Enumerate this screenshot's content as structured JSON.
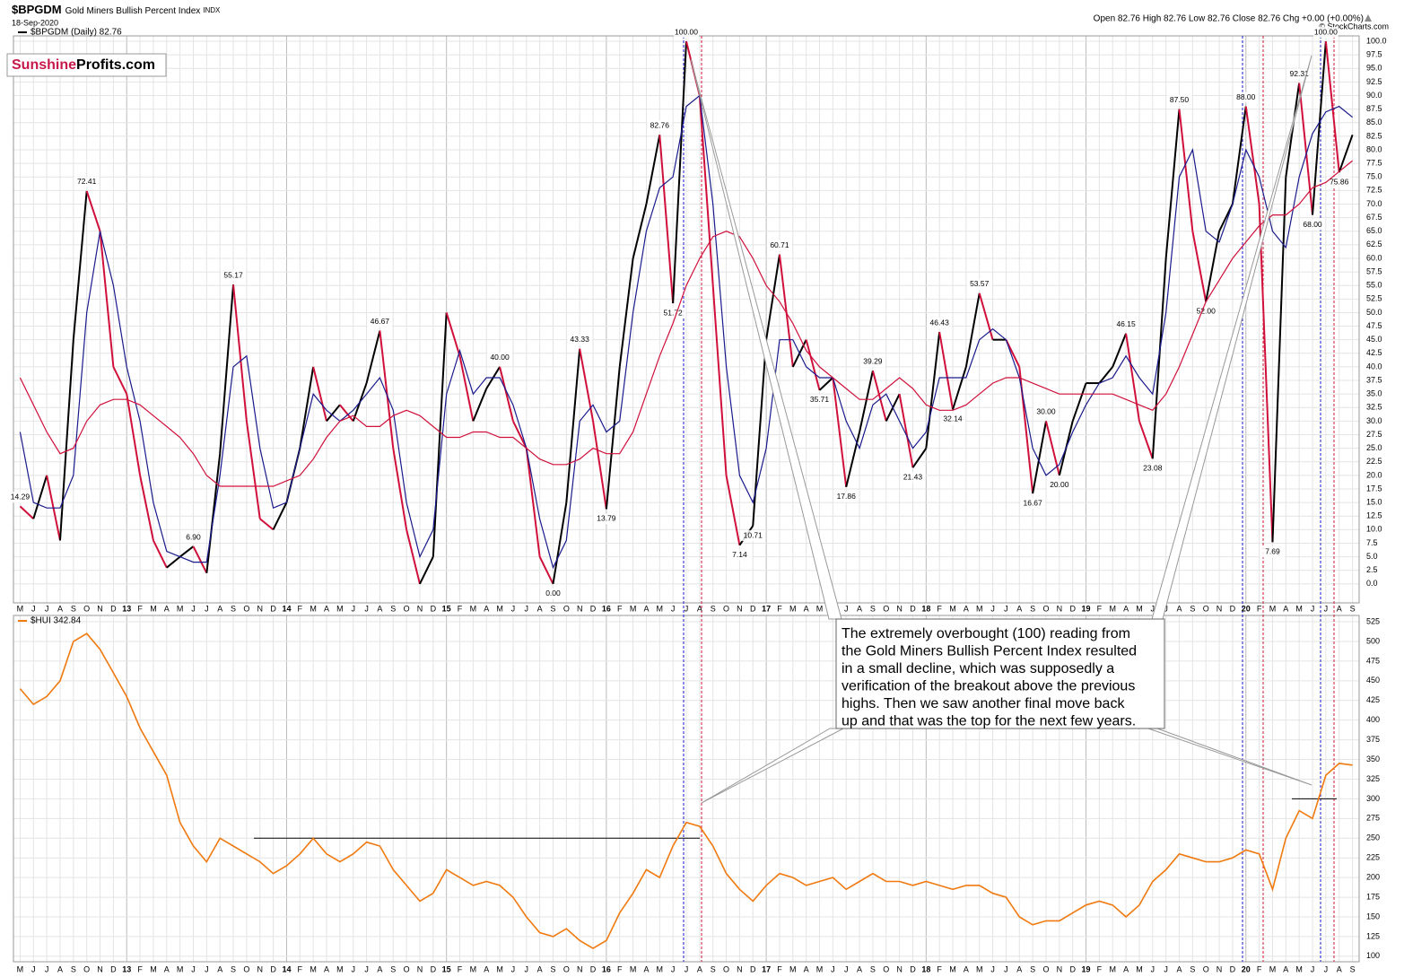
{
  "header": {
    "title": "$BPGDM",
    "subtitle": "Gold Miners Bullish Percent Index",
    "exchange": "INDX",
    "date": "18-Sep-2020",
    "quote": "Open 82.76 High 82.76 Low 82.76 Close 82.76 Chg +0.00 (+0.00%)",
    "credit": "© StockCharts.com",
    "logo_a": "Sunshine",
    "logo_b": "Profits.com"
  },
  "annotation": [
    "The extremely overbought (100) reading from",
    "the Gold Miners Bullish Percent Index resulted",
    "in a small decline, which was supposedly a",
    "verification of the breakout above the previous",
    "highs. Then we saw another final move back",
    "up and that was the top for the next few years."
  ],
  "chart_data": [
    {
      "type": "line",
      "categories": [
        "M",
        "J",
        "J",
        "A",
        "S",
        "O",
        "N",
        "D",
        "13",
        "F",
        "M",
        "A",
        "M",
        "J",
        "J",
        "A",
        "S",
        "O",
        "N",
        "D",
        "14",
        "F",
        "M",
        "A",
        "M",
        "J",
        "J",
        "A",
        "S",
        "O",
        "N",
        "D",
        "15",
        "F",
        "M",
        "A",
        "M",
        "J",
        "J",
        "A",
        "S",
        "O",
        "N",
        "D",
        "16",
        "F",
        "M",
        "A",
        "M",
        "J",
        "J",
        "A",
        "S",
        "O",
        "N",
        "D",
        "17",
        "F",
        "M",
        "A",
        "M",
        "J",
        "J",
        "A",
        "S",
        "O",
        "N",
        "D",
        "18",
        "F",
        "M",
        "A",
        "M",
        "J",
        "J",
        "A",
        "S",
        "O",
        "N",
        "D",
        "19",
        "F",
        "M",
        "A",
        "M",
        "J",
        "J",
        "A",
        "S",
        "O",
        "N",
        "D",
        "20",
        "F",
        "M",
        "A",
        "M",
        "J",
        "J",
        "A",
        "S"
      ],
      "series": [
        {
          "name": "$BPGDM (Daily) 82.76",
          "color": "#000000",
          "down_color": "#d0103a",
          "values": [
            14.29,
            12,
            20,
            8,
            45,
            72.41,
            65,
            40,
            35,
            20,
            8,
            3,
            5,
            6.9,
            2,
            24,
            55.17,
            30,
            12,
            10,
            15,
            25,
            40,
            30,
            33,
            30,
            37,
            46.67,
            25,
            10,
            0,
            5,
            50,
            42,
            30,
            36,
            40,
            30,
            25,
            5,
            0,
            15,
            43.33,
            30,
            13.79,
            40,
            60,
            70,
            82.76,
            51.72,
            100,
            90,
            55,
            20,
            7.14,
            10.71,
            45,
            60.71,
            40,
            45,
            35.71,
            38,
            17.86,
            28,
            39.29,
            30,
            35,
            21.43,
            25,
            46.43,
            32.14,
            40,
            53.57,
            45,
            45,
            40,
            16.67,
            30,
            20,
            30,
            37,
            37,
            40,
            46.15,
            30,
            23.08,
            60,
            87.5,
            65,
            52,
            65,
            70,
            88,
            70,
            7.69,
            75,
            92.31,
            68,
            100,
            75.86,
            82.76
          ],
          "value_labels": [
            "14.29",
            null,
            null,
            null,
            null,
            "72.41",
            null,
            null,
            null,
            null,
            null,
            null,
            null,
            "6.90",
            null,
            null,
            "55.17",
            null,
            null,
            null,
            null,
            null,
            null,
            null,
            null,
            null,
            null,
            "46.67",
            null,
            null,
            null,
            null,
            null,
            null,
            null,
            null,
            "40.00",
            null,
            null,
            null,
            "0.00",
            null,
            "43.33",
            null,
            "13.79",
            null,
            null,
            null,
            "82.76",
            "51.72",
            "100.00",
            null,
            null,
            null,
            "7.14",
            "10.71",
            null,
            "60.71",
            null,
            null,
            "35.71",
            null,
            "17.86",
            null,
            "39.29",
            null,
            null,
            "21.43",
            null,
            "46.43",
            "32.14",
            null,
            "53.57",
            null,
            null,
            null,
            "16.67",
            "30.00",
            "20.00",
            null,
            null,
            null,
            null,
            "46.15",
            null,
            "23.08",
            null,
            "87.50",
            null,
            "52.00",
            null,
            null,
            "88.00",
            null,
            "7.69",
            null,
            "92.31",
            "68.00",
            "100.00",
            "75.86",
            null
          ]
        },
        {
          "color": "#1a1a8c",
          "values": [
            28,
            15,
            14,
            14,
            20,
            50,
            65,
            55,
            40,
            30,
            15,
            6,
            5,
            4,
            4,
            20,
            40,
            42,
            25,
            14,
            15,
            25,
            35,
            32,
            30,
            32,
            35,
            38,
            32,
            15,
            5,
            10,
            35,
            43,
            35,
            38,
            38,
            33,
            25,
            12,
            3,
            8,
            30,
            33,
            28,
            30,
            50,
            65,
            73,
            75,
            88,
            90,
            70,
            40,
            20,
            15,
            25,
            45,
            45,
            40,
            38,
            38,
            30,
            25,
            33,
            35,
            30,
            25,
            28,
            38,
            38,
            38,
            45,
            47,
            45,
            38,
            25,
            20,
            22,
            28,
            33,
            37,
            38,
            42,
            38,
            35,
            50,
            75,
            80,
            65,
            63,
            70,
            80,
            75,
            65,
            62,
            75,
            83,
            87,
            88,
            86
          ]
        },
        {
          "color": "#d0103a",
          "values": [
            38,
            33,
            28,
            24,
            25,
            30,
            33,
            34,
            34,
            33,
            31,
            29,
            27,
            24,
            20,
            18,
            18,
            18,
            18,
            18,
            19,
            20,
            23,
            27,
            30,
            31,
            29,
            29,
            31,
            32,
            31,
            29,
            27,
            27,
            28,
            28,
            27,
            27,
            25,
            23,
            22,
            22,
            23,
            25,
            24,
            24,
            28,
            35,
            42,
            48,
            55,
            60,
            64,
            65,
            64,
            60,
            55,
            52,
            48,
            43,
            40,
            38,
            36,
            34,
            34,
            36,
            38,
            36,
            33,
            32,
            32,
            33,
            35,
            37,
            38,
            38,
            37,
            36,
            35,
            35,
            35,
            35,
            35,
            34,
            33,
            32,
            35,
            40,
            46,
            52,
            56,
            60,
            63,
            66,
            68,
            68,
            70,
            73,
            74,
            76,
            78
          ]
        }
      ],
      "ylim": [
        -3.5,
        101
      ],
      "yticks": [
        {
          "value": 0,
          "label": "0.0"
        },
        {
          "value": 2.5,
          "label": "2.5"
        },
        {
          "value": 5,
          "label": "5.0"
        },
        {
          "value": 7.5,
          "label": "7.5"
        },
        {
          "value": 10,
          "label": "10.0"
        },
        {
          "value": 12.5,
          "label": "12.5"
        },
        {
          "value": 15,
          "label": "15.0"
        },
        {
          "value": 17.5,
          "label": "17.5"
        },
        {
          "value": 20,
          "label": "20.0"
        },
        {
          "value": 22.5,
          "label": "22.5"
        },
        {
          "value": 25,
          "label": "25.0"
        },
        {
          "value": 27.5,
          "label": "27.5"
        },
        {
          "value": 30,
          "label": "30.0"
        },
        {
          "value": 32.5,
          "label": "32.5"
        },
        {
          "value": 35,
          "label": "35.0"
        },
        {
          "value": 37.5,
          "label": "37.5"
        },
        {
          "value": 40,
          "label": "40.0"
        },
        {
          "value": 42.5,
          "label": "42.5"
        },
        {
          "value": 45,
          "label": "45.0"
        },
        {
          "value": 47.5,
          "label": "47.5"
        },
        {
          "value": 50,
          "label": "50.0"
        },
        {
          "value": 52.5,
          "label": "52.5"
        },
        {
          "value": 55,
          "label": "55.0"
        },
        {
          "value": 57.5,
          "label": "57.5"
        },
        {
          "value": 60,
          "label": "60.0"
        },
        {
          "value": 62.5,
          "label": "62.5"
        },
        {
          "value": 65,
          "label": "65.0"
        },
        {
          "value": 67.5,
          "label": "67.5"
        },
        {
          "value": 70,
          "label": "70.0"
        },
        {
          "value": 72.5,
          "label": "72.5"
        },
        {
          "value": 75,
          "label": "75.0"
        },
        {
          "value": 77.5,
          "label": "77.5"
        },
        {
          "value": 80,
          "label": "80.0"
        },
        {
          "value": 82.5,
          "label": "82.5"
        },
        {
          "value": 85,
          "label": "85.0"
        },
        {
          "value": 87.5,
          "label": "87.5"
        },
        {
          "value": 90,
          "label": "90.0"
        },
        {
          "value": 92.5,
          "label": "92.5"
        },
        {
          "value": 95,
          "label": "95.0"
        },
        {
          "value": 97.5,
          "label": "97.5"
        },
        {
          "value": 100,
          "label": "100.0"
        }
      ],
      "grid": true
    },
    {
      "type": "line",
      "categories": [
        "M",
        "J",
        "J",
        "A",
        "S",
        "O",
        "N",
        "D",
        "13",
        "F",
        "M",
        "A",
        "M",
        "J",
        "J",
        "A",
        "S",
        "O",
        "N",
        "D",
        "14",
        "F",
        "M",
        "A",
        "M",
        "J",
        "J",
        "A",
        "S",
        "O",
        "N",
        "D",
        "15",
        "F",
        "M",
        "A",
        "M",
        "J",
        "J",
        "A",
        "S",
        "O",
        "N",
        "D",
        "16",
        "F",
        "M",
        "A",
        "M",
        "J",
        "J",
        "A",
        "S",
        "O",
        "N",
        "D",
        "17",
        "F",
        "M",
        "A",
        "M",
        "J",
        "J",
        "A",
        "S",
        "O",
        "N",
        "D",
        "18",
        "F",
        "M",
        "A",
        "M",
        "J",
        "J",
        "A",
        "S",
        "O",
        "N",
        "D",
        "19",
        "F",
        "M",
        "A",
        "M",
        "J",
        "J",
        "A",
        "S",
        "O",
        "N",
        "D",
        "20",
        "F",
        "M",
        "A",
        "M",
        "J",
        "J",
        "A",
        "S"
      ],
      "series": [
        {
          "name": "$HUI 342.84",
          "color": "#f07a10",
          "values": [
            440,
            420,
            430,
            450,
            500,
            510,
            490,
            460,
            430,
            390,
            360,
            330,
            270,
            240,
            220,
            250,
            240,
            230,
            220,
            205,
            215,
            230,
            250,
            230,
            220,
            230,
            245,
            240,
            210,
            190,
            170,
            180,
            210,
            200,
            190,
            195,
            190,
            175,
            150,
            130,
            125,
            135,
            120,
            110,
            120,
            155,
            180,
            210,
            200,
            240,
            270,
            265,
            240,
            205,
            185,
            170,
            190,
            205,
            200,
            190,
            195,
            200,
            185,
            195,
            205,
            195,
            195,
            190,
            195,
            190,
            185,
            190,
            190,
            180,
            175,
            150,
            140,
            145,
            145,
            155,
            165,
            170,
            165,
            150,
            165,
            195,
            210,
            230,
            225,
            220,
            220,
            225,
            235,
            230,
            185,
            250,
            285,
            275,
            330,
            345,
            342.84
          ]
        }
      ],
      "reference_levels": [
        250,
        300
      ],
      "ylim": [
        93,
        533
      ],
      "yticks": [
        100,
        125,
        150,
        175,
        200,
        225,
        250,
        275,
        300,
        325,
        350,
        375,
        400,
        425,
        450,
        475,
        500,
        525
      ],
      "grid": true
    }
  ]
}
